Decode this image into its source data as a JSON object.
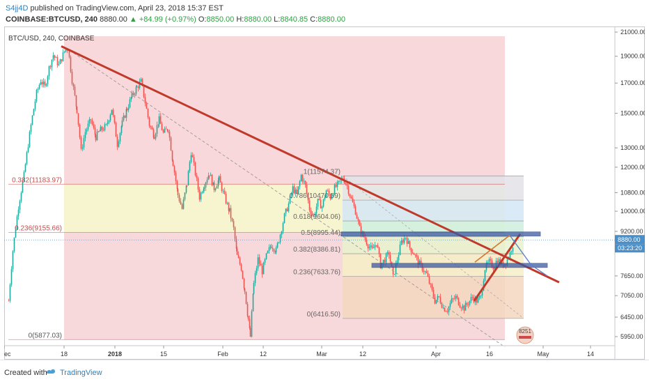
{
  "header": {
    "user": "S4jj4D",
    "published": "published on TradingView.com, April 23, 2018 15:37 EST",
    "symbol": "COINBASE:BTCUSD, 240",
    "last": "8880.00",
    "change": "▲ +84.99 (+0.97%)",
    "o_label": "O:",
    "o": "8850.00",
    "h_label": "H:",
    "h": "8880.00",
    "l_label": "L:",
    "l": "8840.85",
    "c_label": "C:",
    "c": "8880.00"
  },
  "footer": {
    "created": "Created with",
    "brand": "TradingView"
  },
  "colors": {
    "up": "#26a69a",
    "down": "#ef5350",
    "trendline": "#c0392b",
    "fib_blue": "#3d5aa3",
    "accent": "#2a7fbf",
    "price_tag": "#4a8fc7"
  },
  "chart_data": {
    "type": "candlestick",
    "title": "BTC/USD, 240, COINBASE",
    "scale": "log",
    "ylim": [
      5600,
      21000
    ],
    "y_ticks": [
      "21000.00",
      "19000.00",
      "17000.00",
      "15000.00",
      "13000.00",
      "12000.00",
      "10800.00",
      "10000.00",
      "9200.00",
      "8880.00",
      "03:23:20",
      "7650.00",
      "7050.00",
      "6450.00",
      "5950.00"
    ],
    "x_ticks": [
      "ec",
      "18",
      "2018",
      "15",
      "Feb",
      "12",
      "Mar",
      "12",
      "Apr",
      "16",
      "May",
      "14"
    ],
    "last_price": 8880,
    "countdown": "03:23:20",
    "fib_left": [
      {
        "label": "0.382(11183.97)",
        "value": 11183.97
      },
      {
        "label": "0.236(9155.66)",
        "value": 9155.66
      },
      {
        "label": "0(5877.03)",
        "value": 5877.03
      }
    ],
    "fib_right": [
      {
        "label": "1(11574.37)",
        "value": 11574.37
      },
      {
        "label": "0.786(10470.59)",
        "value": 10470.59
      },
      {
        "label": "0.618(9604.06)",
        "value": 9604.06
      },
      {
        "label": "0.5(8995.44)",
        "value": 8995.44
      },
      {
        "label": "0.382(8386.81)",
        "value": 8386.81
      },
      {
        "label": "0.236(7633.76)",
        "value": 7633.76
      },
      {
        "label": "0(6416.50)",
        "value": 6416.5
      }
    ],
    "badge": "8251",
    "anchors": [
      [
        0,
        6900
      ],
      [
        6,
        8500
      ],
      [
        14,
        10200
      ],
      [
        22,
        11600
      ],
      [
        28,
        13200
      ],
      [
        34,
        14800
      ],
      [
        40,
        16300
      ],
      [
        46,
        17200
      ],
      [
        52,
        16700
      ],
      [
        58,
        18100
      ],
      [
        64,
        19100
      ],
      [
        72,
        18300
      ],
      [
        80,
        19400
      ],
      [
        85,
        19700
      ],
      [
        91,
        17200
      ],
      [
        98,
        15200
      ],
      [
        104,
        12800
      ],
      [
        110,
        13900
      ],
      [
        118,
        14600
      ],
      [
        125,
        13600
      ],
      [
        132,
        14000
      ],
      [
        140,
        14200
      ],
      [
        148,
        15300
      ],
      [
        156,
        13200
      ],
      [
        163,
        14400
      ],
      [
        170,
        15300
      ],
      [
        177,
        16100
      ],
      [
        184,
        16700
      ],
      [
        190,
        17100
      ],
      [
        196,
        15700
      ],
      [
        202,
        14300
      ],
      [
        209,
        13700
      ],
      [
        216,
        14600
      ],
      [
        222,
        13800
      ],
      [
        229,
        14100
      ],
      [
        236,
        12200
      ],
      [
        243,
        10700
      ],
      [
        249,
        10100
      ],
      [
        256,
        11200
      ],
      [
        262,
        12800
      ],
      [
        268,
        11700
      ],
      [
        274,
        10600
      ],
      [
        281,
        11200
      ],
      [
        288,
        11700
      ],
      [
        295,
        11000
      ],
      [
        302,
        11400
      ],
      [
        310,
        10600
      ],
      [
        317,
        10000
      ],
      [
        323,
        9300
      ],
      [
        328,
        8300
      ],
      [
        334,
        7900
      ],
      [
        339,
        7200
      ],
      [
        344,
        6400
      ],
      [
        347,
        5950
      ],
      [
        352,
        7400
      ],
      [
        358,
        8200
      ],
      [
        364,
        7800
      ],
      [
        370,
        8300
      ],
      [
        377,
        8700
      ],
      [
        384,
        8500
      ],
      [
        390,
        9100
      ],
      [
        396,
        9800
      ],
      [
        402,
        10300
      ],
      [
        408,
        11000
      ],
      [
        414,
        10700
      ],
      [
        420,
        11600
      ],
      [
        426,
        11100
      ],
      [
        432,
        10100
      ],
      [
        438,
        9800
      ],
      [
        444,
        10400
      ],
      [
        450,
        10200
      ],
      [
        456,
        10900
      ],
      [
        462,
        10600
      ],
      [
        468,
        11000
      ],
      [
        474,
        11200
      ],
      [
        480,
        11500
      ],
      [
        486,
        11100
      ],
      [
        492,
        10500
      ],
      [
        498,
        10000
      ],
      [
        504,
        9300
      ],
      [
        510,
        9000
      ],
      [
        516,
        8700
      ],
      [
        522,
        8500
      ],
      [
        528,
        8800
      ],
      [
        534,
        8000
      ],
      [
        540,
        8200
      ],
      [
        546,
        8400
      ],
      [
        552,
        7600
      ],
      [
        558,
        8200
      ],
      [
        564,
        8800
      ],
      [
        570,
        9000
      ],
      [
        576,
        8600
      ],
      [
        582,
        8400
      ],
      [
        588,
        8100
      ],
      [
        594,
        7900
      ],
      [
        600,
        7700
      ],
      [
        606,
        7300
      ],
      [
        612,
        6900
      ],
      [
        618,
        7000
      ],
      [
        624,
        6700
      ],
      [
        630,
        6650
      ],
      [
        636,
        6900
      ],
      [
        642,
        7000
      ],
      [
        648,
        6800
      ],
      [
        654,
        6700
      ],
      [
        660,
        6850
      ],
      [
        666,
        7000
      ],
      [
        672,
        6900
      ],
      [
        678,
        7000
      ],
      [
        684,
        7900
      ],
      [
        690,
        8100
      ],
      [
        696,
        7950
      ],
      [
        702,
        8200
      ],
      [
        708,
        8000
      ],
      [
        714,
        8100
      ],
      [
        720,
        8400
      ],
      [
        726,
        8880
      ]
    ]
  }
}
